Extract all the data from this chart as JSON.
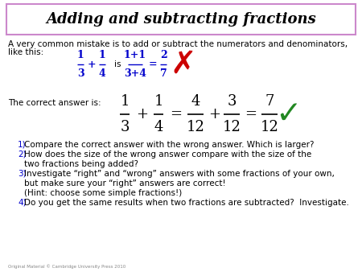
{
  "title": "Adding and subtracting fractions",
  "background_color": "#ffffff",
  "title_box_color": "#cc88cc",
  "text_color": "#000000",
  "blue_color": "#0000cc",
  "red_color": "#cc0000",
  "green_color": "#228822",
  "intro_line1": "A very common mistake is to add or subtract the numerators and denominators,",
  "intro_line2": "like this:",
  "correct_label": "The correct answer is:",
  "q1": "Compare the correct answer with the wrong answer. Which is larger?",
  "q2a": "How does the size of the wrong answer compare with the size of the",
  "q2b": "two fractions being added?",
  "q3a": "Investigate “right” and “wrong” answers with some fractions of your own,",
  "q3b": "but make sure your “right” answers are correct!",
  "q3c": "(Hint: choose some simple fractions!)",
  "q4": "Do you get the same results when two fractions are subtracted?  Investigate.",
  "footer": "Original Material © Cambridge University Press 2010"
}
